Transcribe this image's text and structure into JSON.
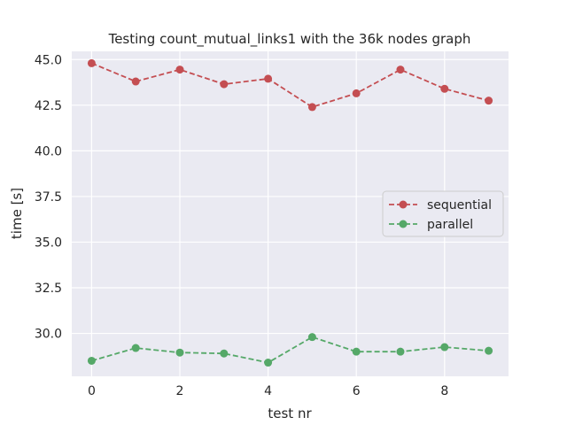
{
  "chart_data": {
    "type": "line",
    "title": "Testing count_mutual_links1 with the 36k nodes graph",
    "xlabel": "test nr",
    "ylabel": "time [s]",
    "x": [
      0,
      1,
      2,
      3,
      4,
      5,
      6,
      7,
      8,
      9
    ],
    "xlim": [
      -0.45,
      9.45
    ],
    "ylim": [
      27.65,
      45.45
    ],
    "xticks": [
      0,
      2,
      4,
      6,
      8
    ],
    "yticks": [
      30.0,
      32.5,
      35.0,
      37.5,
      40.0,
      42.5,
      45.0
    ],
    "ytick_labels": [
      "30.0",
      "32.5",
      "35.0",
      "37.5",
      "40.0",
      "42.5",
      "45.0"
    ],
    "grid": true,
    "legend_position": "center-right",
    "series": [
      {
        "name": "sequential",
        "color": "#c44e52",
        "linestyle": "dashed",
        "marker": "circle",
        "values": [
          44.8,
          43.8,
          44.45,
          43.65,
          43.95,
          42.4,
          43.15,
          44.45,
          43.4,
          42.75
        ]
      },
      {
        "name": "parallel",
        "color": "#55a868",
        "linestyle": "dashed",
        "marker": "circle",
        "values": [
          28.5,
          29.2,
          28.95,
          28.9,
          28.4,
          29.8,
          29.0,
          29.0,
          29.25,
          29.05
        ]
      }
    ]
  }
}
